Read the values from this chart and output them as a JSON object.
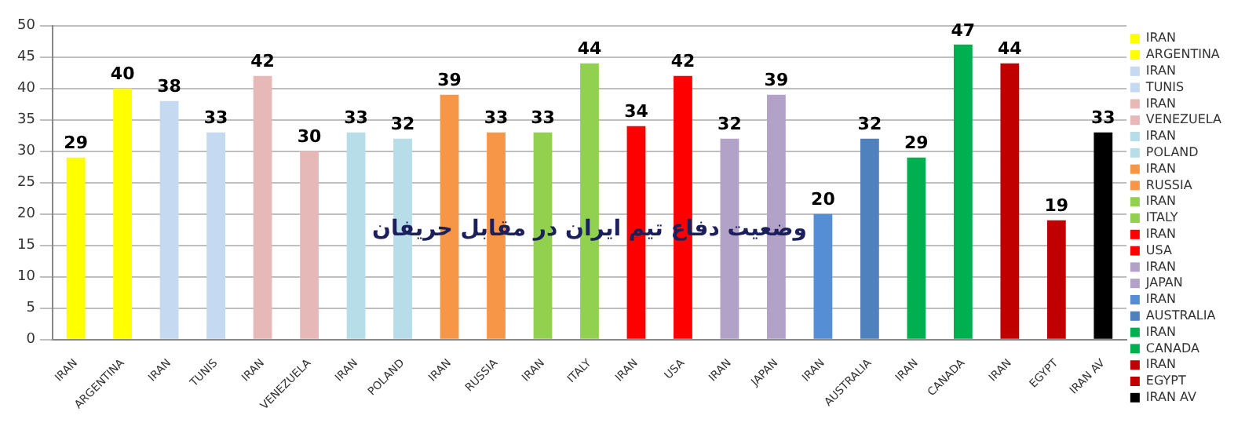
{
  "chart_data": {
    "type": "bar",
    "title": "وضعیت دفاع تیم ایران در مقابل حریفان",
    "categories": [
      "IRAN",
      "ARGENTINA",
      "IRAN",
      "TUNIS",
      "IRAN",
      "VENEZUELA",
      "IRAN",
      "POLAND",
      "IRAN",
      "RUSSIA",
      "IRAN",
      "ITALY",
      "IRAN",
      "USA",
      "IRAN",
      "JAPAN",
      "IRAN",
      "AUSTRALIA",
      "IRAN",
      "CANADA",
      "IRAN",
      "EGYPT",
      "IRAN AV"
    ],
    "series": [
      {
        "name": "IRAN",
        "color": "#ffff00",
        "values": [
          29,
          null,
          null,
          null,
          null,
          null,
          null,
          null,
          null,
          null,
          null,
          null,
          null,
          null,
          null,
          null,
          null,
          null,
          null,
          null,
          null,
          null,
          null
        ]
      },
      {
        "name": "ARGENTINA",
        "color": "#ffff00",
        "values": [
          null,
          40,
          null,
          null,
          null,
          null,
          null,
          null,
          null,
          null,
          null,
          null,
          null,
          null,
          null,
          null,
          null,
          null,
          null,
          null,
          null,
          null,
          null
        ]
      },
      {
        "name": "IRAN",
        "color": "#c5d9f1",
        "values": [
          null,
          null,
          38,
          null,
          null,
          null,
          null,
          null,
          null,
          null,
          null,
          null,
          null,
          null,
          null,
          null,
          null,
          null,
          null,
          null,
          null,
          null,
          null
        ]
      },
      {
        "name": "TUNIS",
        "color": "#c5d9f1",
        "values": [
          null,
          null,
          null,
          33,
          null,
          null,
          null,
          null,
          null,
          null,
          null,
          null,
          null,
          null,
          null,
          null,
          null,
          null,
          null,
          null,
          null,
          null,
          null
        ]
      },
      {
        "name": "IRAN",
        "color": "#e6b9b8",
        "values": [
          null,
          null,
          null,
          null,
          42,
          null,
          null,
          null,
          null,
          null,
          null,
          null,
          null,
          null,
          null,
          null,
          null,
          null,
          null,
          null,
          null,
          null,
          null
        ]
      },
      {
        "name": "VENEZUELA",
        "color": "#e6b9b8",
        "values": [
          null,
          null,
          null,
          null,
          null,
          30,
          null,
          null,
          null,
          null,
          null,
          null,
          null,
          null,
          null,
          null,
          null,
          null,
          null,
          null,
          null,
          null,
          null
        ]
      },
      {
        "name": "IRAN",
        "color": "#b7dee8",
        "values": [
          null,
          null,
          null,
          null,
          null,
          null,
          33,
          null,
          null,
          null,
          null,
          null,
          null,
          null,
          null,
          null,
          null,
          null,
          null,
          null,
          null,
          null,
          null
        ]
      },
      {
        "name": "POLAND",
        "color": "#b7dee8",
        "values": [
          null,
          null,
          null,
          null,
          null,
          null,
          null,
          32,
          null,
          null,
          null,
          null,
          null,
          null,
          null,
          null,
          null,
          null,
          null,
          null,
          null,
          null,
          null
        ]
      },
      {
        "name": "IRAN",
        "color": "#f79646",
        "values": [
          null,
          null,
          null,
          null,
          null,
          null,
          null,
          null,
          39,
          null,
          null,
          null,
          null,
          null,
          null,
          null,
          null,
          null,
          null,
          null,
          null,
          null,
          null
        ]
      },
      {
        "name": "RUSSIA",
        "color": "#f79646",
        "values": [
          null,
          null,
          null,
          null,
          null,
          null,
          null,
          null,
          null,
          33,
          null,
          null,
          null,
          null,
          null,
          null,
          null,
          null,
          null,
          null,
          null,
          null,
          null
        ]
      },
      {
        "name": "IRAN",
        "color": "#92d050",
        "values": [
          null,
          null,
          null,
          null,
          null,
          null,
          null,
          null,
          null,
          null,
          33,
          null,
          null,
          null,
          null,
          null,
          null,
          null,
          null,
          null,
          null,
          null,
          null
        ]
      },
      {
        "name": "ITALY",
        "color": "#92d050",
        "values": [
          null,
          null,
          null,
          null,
          null,
          null,
          null,
          null,
          null,
          null,
          null,
          44,
          null,
          null,
          null,
          null,
          null,
          null,
          null,
          null,
          null,
          null,
          null
        ]
      },
      {
        "name": "IRAN",
        "color": "#ff0000",
        "values": [
          null,
          null,
          null,
          null,
          null,
          null,
          null,
          null,
          null,
          null,
          null,
          null,
          34,
          null,
          null,
          null,
          null,
          null,
          null,
          null,
          null,
          null,
          null
        ]
      },
      {
        "name": "USA",
        "color": "#ff0000",
        "values": [
          null,
          null,
          null,
          null,
          null,
          null,
          null,
          null,
          null,
          null,
          null,
          null,
          null,
          42,
          null,
          null,
          null,
          null,
          null,
          null,
          null,
          null,
          null
        ]
      },
      {
        "name": "IRAN",
        "color": "#b3a2c7",
        "values": [
          null,
          null,
          null,
          null,
          null,
          null,
          null,
          null,
          null,
          null,
          null,
          null,
          null,
          null,
          32,
          null,
          null,
          null,
          null,
          null,
          null,
          null,
          null
        ]
      },
      {
        "name": "JAPAN",
        "color": "#b3a2c7",
        "values": [
          null,
          null,
          null,
          null,
          null,
          null,
          null,
          null,
          null,
          null,
          null,
          null,
          null,
          null,
          null,
          39,
          null,
          null,
          null,
          null,
          null,
          null,
          null
        ]
      },
      {
        "name": "IRAN",
        "color": "#558ed5",
        "values": [
          null,
          null,
          null,
          null,
          null,
          null,
          null,
          null,
          null,
          null,
          null,
          null,
          null,
          null,
          null,
          null,
          20,
          null,
          null,
          null,
          null,
          null,
          null
        ]
      },
      {
        "name": "AUSTRALIA",
        "color": "#4f81bd",
        "values": [
          null,
          null,
          null,
          null,
          null,
          null,
          null,
          null,
          null,
          null,
          null,
          null,
          null,
          null,
          null,
          null,
          null,
          32,
          null,
          null,
          null,
          null,
          null
        ]
      },
      {
        "name": "IRAN",
        "color": "#00b050",
        "values": [
          null,
          null,
          null,
          null,
          null,
          null,
          null,
          null,
          null,
          null,
          null,
          null,
          null,
          null,
          null,
          null,
          null,
          null,
          29,
          null,
          null,
          null,
          null
        ]
      },
      {
        "name": "CANADA",
        "color": "#00b050",
        "values": [
          null,
          null,
          null,
          null,
          null,
          null,
          null,
          null,
          null,
          null,
          null,
          null,
          null,
          null,
          null,
          null,
          null,
          null,
          null,
          47,
          null,
          null,
          null
        ]
      },
      {
        "name": "IRAN",
        "color": "#c00000",
        "values": [
          null,
          null,
          null,
          null,
          null,
          null,
          null,
          null,
          null,
          null,
          null,
          null,
          null,
          null,
          null,
          null,
          null,
          null,
          null,
          null,
          44,
          null,
          null
        ]
      },
      {
        "name": "EGYPT",
        "color": "#c00000",
        "values": [
          null,
          null,
          null,
          null,
          null,
          null,
          null,
          null,
          null,
          null,
          null,
          null,
          null,
          null,
          null,
          null,
          null,
          null,
          null,
          null,
          null,
          19,
          null
        ]
      },
      {
        "name": "IRAN AV",
        "color": "#000000",
        "values": [
          null,
          null,
          null,
          null,
          null,
          null,
          null,
          null,
          null,
          null,
          null,
          null,
          null,
          null,
          null,
          null,
          null,
          null,
          null,
          null,
          null,
          null,
          33
        ]
      }
    ],
    "ylim": [
      0,
      50
    ],
    "yticks": [
      0,
      5,
      10,
      15,
      20,
      25,
      30,
      35,
      40,
      45,
      50
    ],
    "grid": "y",
    "legend": "right",
    "data_labels": true
  }
}
